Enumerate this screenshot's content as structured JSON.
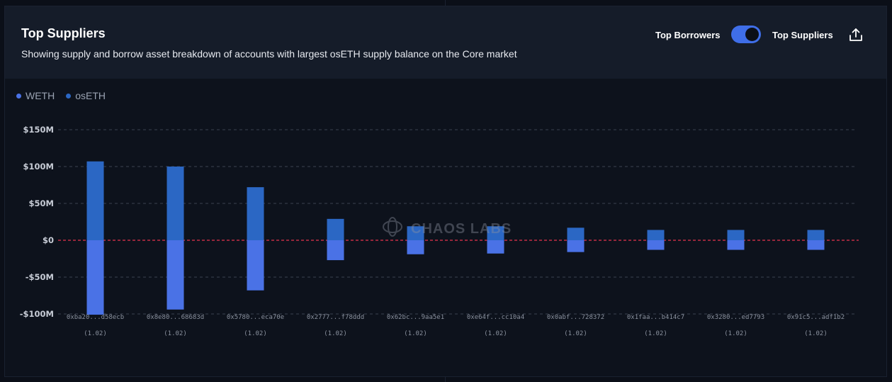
{
  "header": {
    "title": "Top Suppliers",
    "subtitle": "Showing supply and borrow asset breakdown of accounts with largest osETH supply balance on the Core market",
    "toggle_left_label": "Top Borrowers",
    "toggle_right_label": "Top Suppliers",
    "toggle_state": "Top Suppliers",
    "export_icon": "share-upload-icon"
  },
  "watermark": "CHAOS LABS",
  "colors": {
    "weth": "#4a72e6",
    "oseth": "#2b67c4",
    "zero_line": "#e5334b",
    "accent": "#3f6ee8"
  },
  "chart_data": {
    "type": "bar",
    "stacked": true,
    "legend": [
      {
        "name": "WETH",
        "color": "#4a72e6"
      },
      {
        "name": "osETH",
        "color": "#2b67c4"
      }
    ],
    "categories": [
      "0xba20...d58ecb",
      "0x8e80...68683d",
      "0x5780...eca70e",
      "0x2777...f78ddd",
      "0x62bc...9aa5e1",
      "0xe64f...cc10a4",
      "0x0abf...728372",
      "0x1faa...b414c7",
      "0x3280...ed7793",
      "0x91c5...adf1b2"
    ],
    "sublabels": [
      "(1.02)",
      "(1.02)",
      "(1.02)",
      "(1.02)",
      "(1.02)",
      "(1.02)",
      "(1.02)",
      "(1.02)",
      "(1.02)",
      "(1.02)"
    ],
    "series": [
      {
        "name": "osETH",
        "values": [
          107,
          100,
          72,
          29,
          19,
          19,
          17,
          14,
          14,
          14
        ]
      },
      {
        "name": "WETH",
        "values": [
          -101,
          -94,
          -68,
          -27,
          -19,
          -18,
          -16,
          -13,
          -13,
          -13
        ]
      }
    ],
    "ylim": [
      -100,
      150
    ],
    "yticks": [
      150,
      100,
      50,
      0,
      -50,
      -100
    ],
    "ytick_labels": [
      "$150M",
      "$100M",
      "$50M",
      "$0",
      "-$50M",
      "-$100M"
    ],
    "units": "$M",
    "grid": true,
    "zero_line": true
  }
}
